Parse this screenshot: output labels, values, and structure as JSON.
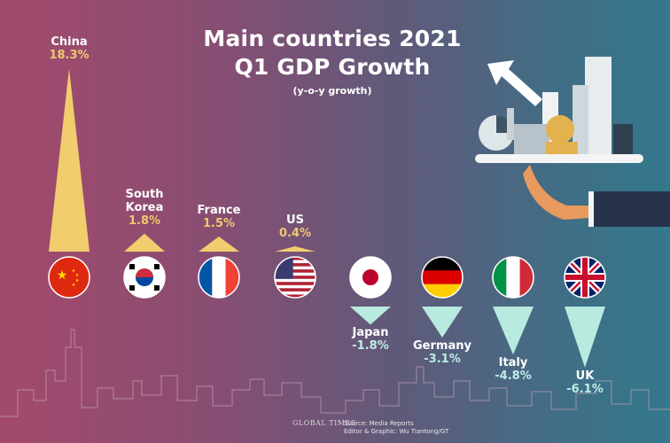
{
  "chart_data": {
    "type": "bar",
    "title": "Main countries 2021 Q1 GDP Growth",
    "subtitle": "(y-o-y growth)",
    "unit": "%",
    "categories": [
      "China",
      "South Korea",
      "France",
      "US",
      "Japan",
      "Germany",
      "Italy",
      "UK"
    ],
    "values": [
      18.3,
      1.8,
      1.5,
      0.4,
      -1.8,
      -3.1,
      -4.8,
      -6.1
    ],
    "value_labels": [
      "18.3%",
      "1.8%",
      "1.5%",
      "0.4%",
      "-1.8%",
      "-3.1%",
      "-4.8%",
      "-6.1%"
    ],
    "positive_color": "#f2cd6e",
    "negative_color": "#b9eadf",
    "marker_style": "triangle"
  },
  "footer": {
    "logo": "GLOBAL TIMES",
    "source": "Source: Media Reports",
    "credit": "Editor & Graphic: Wu Tiantong/GT"
  }
}
